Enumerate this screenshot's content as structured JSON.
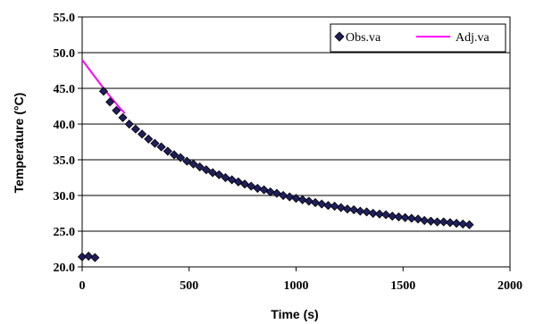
{
  "chart_data": {
    "type": "scatter",
    "title": "",
    "xlabel": "Time (s)",
    "ylabel": "Temperature (°C)",
    "xlim": [
      0,
      2000
    ],
    "ylim": [
      20.0,
      55.0
    ],
    "x_ticks": [
      "0",
      "500",
      "1000",
      "1500",
      "2000"
    ],
    "y_ticks": [
      "20.0",
      "25.0",
      "30.0",
      "35.0",
      "40.0",
      "45.0",
      "50.0",
      "55.0"
    ],
    "grid": "horizontal",
    "legend_position": "top-right",
    "series": [
      {
        "name": "Obs.va",
        "kind": "markers",
        "marker": "diamond",
        "color": "#1f1f5e",
        "x": [
          0,
          30,
          60,
          100,
          130,
          160,
          190,
          220,
          250,
          280,
          310,
          340,
          370,
          400,
          430,
          460,
          490,
          520,
          550,
          580,
          610,
          640,
          670,
          700,
          730,
          760,
          790,
          820,
          850,
          880,
          910,
          940,
          970,
          1000,
          1030,
          1060,
          1090,
          1120,
          1150,
          1180,
          1210,
          1240,
          1270,
          1300,
          1330,
          1360,
          1390,
          1420,
          1450,
          1480,
          1510,
          1540,
          1570,
          1600,
          1630,
          1660,
          1690,
          1720,
          1750,
          1780,
          1810
        ],
        "y": [
          21.4,
          21.5,
          21.3,
          44.6,
          43.1,
          41.9,
          40.9,
          40.0,
          39.3,
          38.6,
          37.9,
          37.3,
          36.8,
          36.2,
          35.7,
          35.3,
          34.8,
          34.4,
          34.0,
          33.6,
          33.2,
          32.9,
          32.5,
          32.2,
          31.9,
          31.6,
          31.3,
          31.0,
          30.8,
          30.5,
          30.3,
          30.0,
          29.8,
          29.6,
          29.4,
          29.2,
          29.0,
          28.8,
          28.6,
          28.5,
          28.3,
          28.1,
          28.0,
          27.8,
          27.7,
          27.5,
          27.4,
          27.3,
          27.1,
          27.0,
          26.9,
          26.8,
          26.7,
          26.5,
          26.4,
          26.3,
          26.3,
          26.2,
          26.1,
          26.0,
          25.9
        ]
      },
      {
        "name": "Adj.va",
        "kind": "line",
        "color": "#ff00ff",
        "x": [
          0,
          25,
          50,
          75,
          100,
          125,
          150,
          175,
          200
        ],
        "y": [
          49.0,
          48.0,
          47.0,
          46.0,
          45.0,
          44.1,
          43.2,
          42.3,
          41.5
        ]
      }
    ]
  }
}
